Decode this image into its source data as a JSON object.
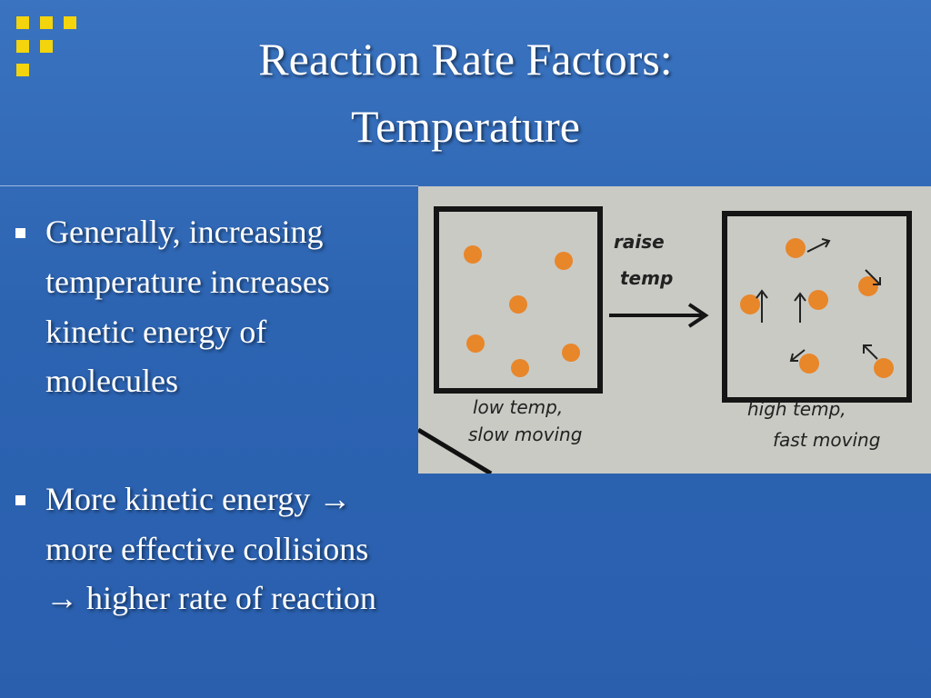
{
  "slide": {
    "title": [
      "Reaction Rate Factors:",
      "Temperature"
    ],
    "bullets": [
      [
        "Generally, increasing",
        "temperature increases",
        "kinetic energy of",
        "molecules"
      ],
      [
        "More kinetic energy →",
        "more effective collisions",
        "→ higher rate of reaction"
      ]
    ],
    "sketch": {
      "arrow_label": [
        "raise",
        "temp"
      ],
      "left_caption": [
        "low temp,",
        "slow moving"
      ],
      "right_caption": [
        "high temp,",
        "fast moving"
      ]
    }
  }
}
